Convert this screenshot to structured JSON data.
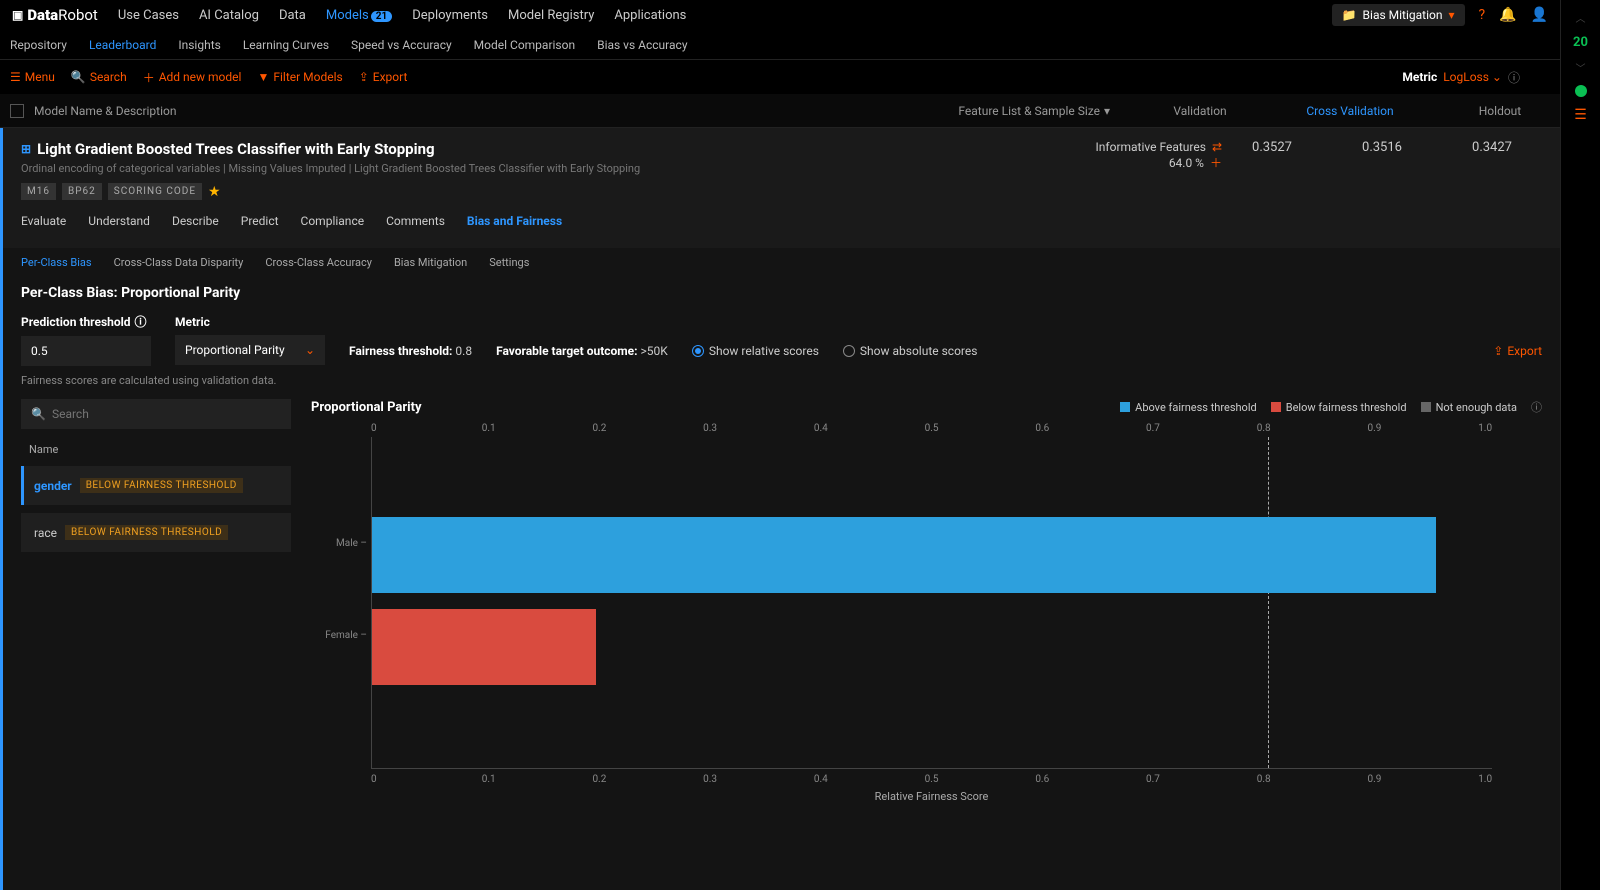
{
  "logo": {
    "brand1": "Data",
    "brand2": "Robot"
  },
  "nav": {
    "items": [
      "Use Cases",
      "AI Catalog",
      "Data",
      "Models",
      "Deployments",
      "Model Registry",
      "Applications"
    ],
    "active_index": 3,
    "models_badge": "21"
  },
  "project": {
    "name": "Bias Mitigation"
  },
  "subnav": {
    "items": [
      "Repository",
      "Leaderboard",
      "Insights",
      "Learning Curves",
      "Speed vs Accuracy",
      "Model Comparison",
      "Bias vs Accuracy"
    ],
    "active_index": 1
  },
  "toolbar": {
    "menu": "Menu",
    "search": "Search",
    "add": "Add new model",
    "filter": "Filter Models",
    "export": "Export",
    "metric_label": "Metric",
    "metric_value": "LogLoss"
  },
  "colhdr": {
    "name": "Model Name & Description",
    "feature": "Feature List & Sample Size",
    "validation": "Validation",
    "cv": "Cross Validation",
    "holdout": "Holdout"
  },
  "model": {
    "title": "Light Gradient Boosted Trees Classifier with Early Stopping",
    "subtitle": "Ordinal encoding of categorical variables | Missing Values Imputed | Light Gradient Boosted Trees Classifier with Early Stopping",
    "tags": [
      "M16",
      "BP62",
      "SCORING CODE"
    ],
    "feature_label": "Informative Features",
    "feature_pct": "64.0 %",
    "validation": "0.3527",
    "cv": "0.3516",
    "holdout": "0.3427"
  },
  "model_tabs": {
    "items": [
      "Evaluate",
      "Understand",
      "Describe",
      "Predict",
      "Compliance",
      "Comments",
      "Bias and Fairness"
    ],
    "active_index": 6
  },
  "subtabs": {
    "items": [
      "Per-Class Bias",
      "Cross-Class Data Disparity",
      "Cross-Class Accuracy",
      "Bias Mitigation",
      "Settings"
    ],
    "active_index": 0
  },
  "bias": {
    "title": "Per-Class Bias: Proportional Parity",
    "pred_label": "Prediction threshold",
    "pred_value": "0.5",
    "metric_label": "Metric",
    "metric_value": "Proportional Parity",
    "fairness_label": "Fairness threshold:",
    "fairness_value": "0.8",
    "outcome_label": "Favorable target outcome:",
    "outcome_value": ">50K",
    "radio_rel": "Show relative scores",
    "radio_abs": "Show absolute scores",
    "export": "Export",
    "note": "Fairness scores are calculated using validation data.",
    "search_ph": "Search",
    "name_col": "Name",
    "features": [
      {
        "name": "gender",
        "badge": "BELOW FAIRNESS THRESHOLD",
        "active": true
      },
      {
        "name": "race",
        "badge": "BELOW FAIRNESS THRESHOLD",
        "active": false
      }
    ],
    "chart": {
      "title": "Proportional Parity",
      "legend": [
        {
          "label": "Above fairness threshold",
          "color": "#2da0dd"
        },
        {
          "label": "Below fairness threshold",
          "color": "#d94b3f"
        },
        {
          "label": "Not enough data",
          "color": "#666666"
        }
      ],
      "xticks": [
        "0",
        "0.1",
        "0.2",
        "0.3",
        "0.4",
        "0.5",
        "0.6",
        "0.7",
        "0.8",
        "0.9",
        "1.0"
      ],
      "threshold": 0.8,
      "bars": [
        {
          "label": "Male",
          "value": 0.95,
          "color": "#2da0dd"
        },
        {
          "label": "Female",
          "value": 0.2,
          "color": "#d94b3f"
        }
      ],
      "xlabel": "Relative Fairness Score"
    }
  },
  "rail": {
    "count": "20"
  }
}
